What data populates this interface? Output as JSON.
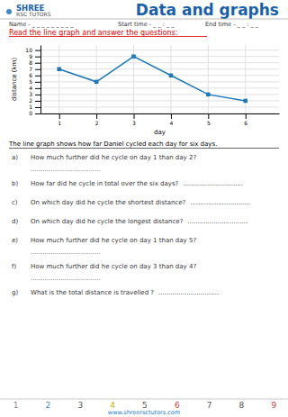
{
  "chart_data": {
    "type": "line",
    "x": [
      1,
      2,
      3,
      4,
      5,
      6
    ],
    "values": [
      7,
      5,
      9,
      6,
      3,
      2
    ],
    "x_label": "day",
    "y_label": "distance (km)",
    "xlim": [
      0.5,
      6.9
    ],
    "ylim": [
      0,
      10.8
    ],
    "xticks": [
      1,
      2,
      3,
      4,
      5,
      6
    ],
    "yticks": [
      0,
      1,
      2,
      3,
      4,
      5,
      6,
      7,
      8,
      9,
      10
    ],
    "grid": true,
    "marker": "square"
  },
  "page": {
    "title": "Data and graphs",
    "title_color": "#1a5fa8",
    "header_logo_line1": "SHREE",
    "header_logo_line2": "RSC TUTORS",
    "name_label": "Name - _ _ _ _ _ _ _ _ _",
    "start_time_label": "Start time - _ _ : _ _",
    "end_time_label": "End time - _ _ : _ _",
    "instruction": "Read the line graph and answer the questions:",
    "instruction_color": "#dd0000",
    "description": "The line graph shows how far Daniel cycled each day for six days.",
    "questions": [
      {
        "letter": "a)",
        "text": "How much further did he cycle on day 1 than day 2?",
        "dots_below": true
      },
      {
        "letter": "b)",
        "text": "How far did he cycle in total over the six days?",
        "dots_below": false
      },
      {
        "letter": "c)",
        "text": "On which day did he cycle the shortest distance?",
        "dots_below": false
      },
      {
        "letter": "d)",
        "text": "On which day did he cycle the longest distance?",
        "dots_below": false
      },
      {
        "letter": "e)",
        "text": "How much further did he cycle on day 1 than day 5?",
        "dots_below": true
      },
      {
        "letter": "f)",
        "text": "How much further did he cycle on day 3 than day 4?",
        "dots_below": true
      },
      {
        "letter": "g)",
        "text": "What is the total distance is travelled ?",
        "dots_below": false
      }
    ],
    "dots_inline": "..............................",
    "dots_below": "...................................",
    "footer_numbers": [
      "1",
      "2",
      "3",
      "4",
      "5",
      "6",
      "7",
      "8",
      "9"
    ],
    "footer_colors": [
      "#888888",
      "#4488cc",
      "#555555",
      "#ccaa00",
      "#555555",
      "#cc4444",
      "#555555",
      "#555555",
      "#cc4444"
    ],
    "website": "www.shreersctutors.com"
  }
}
